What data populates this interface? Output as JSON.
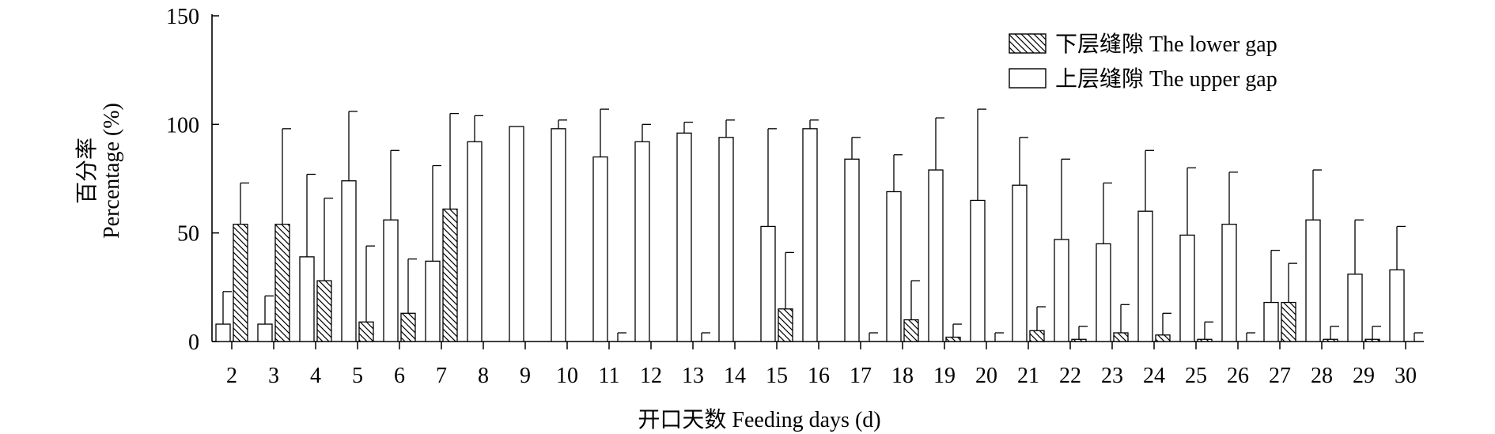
{
  "chart_data": {
    "type": "bar",
    "xlabel": "开口天数 Feeding days (d)",
    "ylabel_lines": [
      "百分率",
      "Percentage (%)"
    ],
    "ylim": [
      0,
      150
    ],
    "yticks": [
      0,
      50,
      100,
      150
    ],
    "grid": false,
    "legend_placement": "top-right",
    "categories": [
      "2",
      "3",
      "4",
      "5",
      "6",
      "7",
      "8",
      "9",
      "10",
      "11",
      "12",
      "13",
      "14",
      "15",
      "16",
      "17",
      "18",
      "19",
      "20",
      "21",
      "22",
      "23",
      "24",
      "25",
      "26",
      "27",
      "28",
      "29",
      "30"
    ],
    "series": [
      {
        "name": "上层缝隙 The upper gap",
        "pattern": "plain",
        "values": [
          8,
          8,
          39,
          74,
          56,
          37,
          92,
          99,
          98,
          85,
          92,
          96,
          94,
          53,
          98,
          84,
          69,
          79,
          65,
          72,
          47,
          45,
          60,
          49,
          54,
          18,
          56,
          31,
          33
        ],
        "errors": [
          15,
          13,
          38,
          32,
          32,
          44,
          12,
          0,
          4,
          22,
          8,
          5,
          8,
          45,
          4,
          10,
          17,
          24,
          42,
          22,
          37,
          28,
          28,
          31,
          24,
          24,
          23,
          25,
          20
        ]
      },
      {
        "name": "下层缝隙 The lower gap",
        "pattern": "hatched",
        "values": [
          54,
          54,
          28,
          9,
          13,
          61,
          0,
          0,
          0,
          0,
          0,
          0,
          0,
          15,
          0,
          0,
          10,
          2,
          0,
          5,
          1,
          4,
          3,
          1,
          0,
          18,
          1,
          1,
          0
        ],
        "errors": [
          19,
          44,
          38,
          35,
          25,
          44,
          0,
          0,
          0,
          4,
          0,
          4,
          0,
          26,
          0,
          4,
          18,
          6,
          4,
          11,
          6,
          13,
          10,
          8,
          4,
          18,
          6,
          6,
          4
        ]
      }
    ],
    "colors": {
      "bar_fill": "#ffffff",
      "stroke": "#000000"
    }
  }
}
